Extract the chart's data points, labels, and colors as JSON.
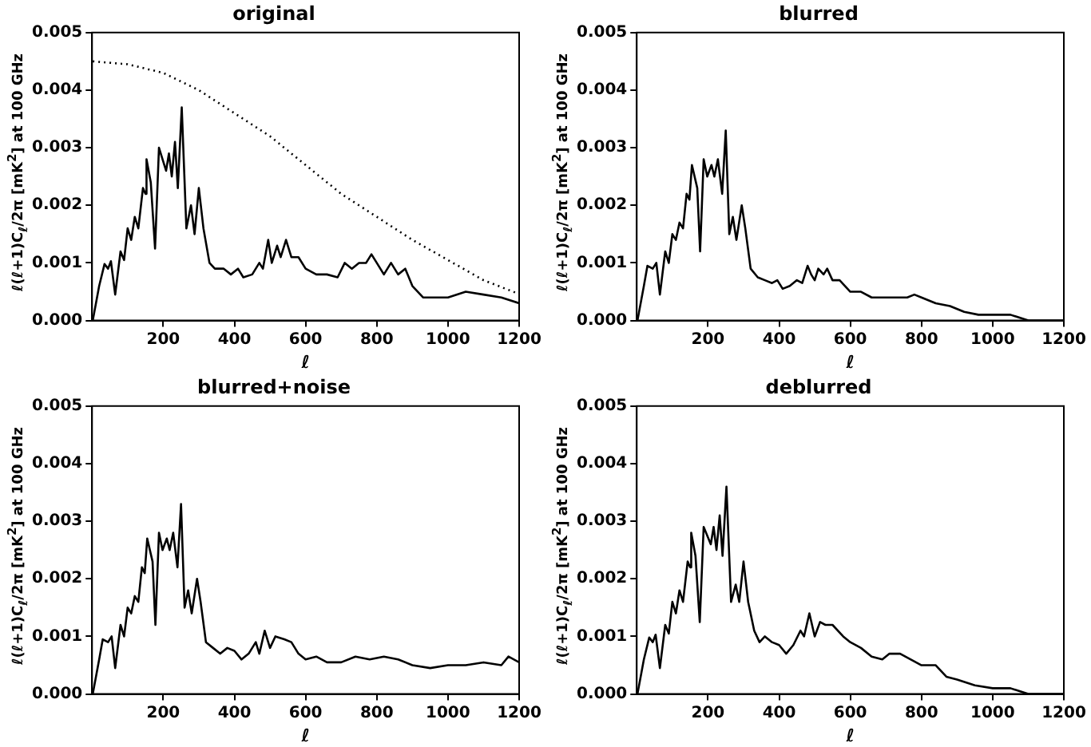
{
  "chart_data": [
    {
      "type": "line",
      "title": "original",
      "xlabel": "ℓ",
      "ylabel": "ℓ(ℓ+1)C$_{ℓ}$/2π   [mK$^{2}$] at 100 GHz",
      "xlim": [
        0,
        1200
      ],
      "xticks": [
        200,
        400,
        600,
        800,
        1000,
        1200
      ],
      "ylim": [
        0,
        0.005
      ],
      "yticks": [
        {
          "value": 0,
          "label": "0.000"
        },
        {
          "value": 0.001,
          "label": "0.001"
        },
        {
          "value": 0.002,
          "label": "0.002"
        },
        {
          "value": 0.003,
          "label": "0.003"
        },
        {
          "value": 0.004,
          "label": "0.004"
        },
        {
          "value": 0.005,
          "label": "0.005"
        }
      ],
      "grid": false,
      "legend": false,
      "marker": "none",
      "series": [
        {
          "color": "#000000",
          "line_style": "solid",
          "x": [
            2,
            20,
            35,
            45,
            53,
            65,
            80,
            90,
            100,
            110,
            120,
            130,
            143,
            150,
            153,
            165,
            177,
            188,
            208,
            216,
            224,
            233,
            241,
            252,
            265,
            278,
            288,
            300,
            313,
            330,
            345,
            370,
            390,
            410,
            425,
            450,
            470,
            480,
            495,
            505,
            520,
            530,
            545,
            560,
            580,
            600,
            630,
            660,
            690,
            710,
            730,
            750,
            770,
            785,
            800,
            820,
            840,
            860,
            880,
            900,
            930,
            960,
            1000,
            1050,
            1100,
            1150,
            1200
          ],
          "values": [
            0,
            0.0006,
            0.00098,
            0.0009,
            0.00103,
            0.00045,
            0.0012,
            0.00105,
            0.0016,
            0.0014,
            0.0018,
            0.0016,
            0.0023,
            0.0022,
            0.0028,
            0.0024,
            0.00125,
            0.003,
            0.0026,
            0.0029,
            0.0025,
            0.0031,
            0.0023,
            0.0037,
            0.0016,
            0.002,
            0.0015,
            0.0023,
            0.0016,
            0.001,
            0.0009,
            0.0009,
            0.0008,
            0.0009,
            0.00075,
            0.0008,
            0.001,
            0.0009,
            0.0014,
            0.001,
            0.0013,
            0.0011,
            0.0014,
            0.0011,
            0.0011,
            0.0009,
            0.0008,
            0.0008,
            0.00075,
            0.001,
            0.0009,
            0.001,
            0.001,
            0.00115,
            0.001,
            0.0008,
            0.001,
            0.0008,
            0.0009,
            0.0006,
            0.0004,
            0.0004,
            0.0004,
            0.0005,
            0.00045,
            0.0004,
            0.0003
          ]
        },
        {
          "color": "#000000",
          "line_style": "dotted",
          "x": [
            2,
            100,
            200,
            300,
            400,
            500,
            600,
            700,
            800,
            900,
            1000,
            1100,
            1200
          ],
          "values": [
            0.0045,
            0.00445,
            0.0043,
            0.004,
            0.0036,
            0.0032,
            0.0027,
            0.0022,
            0.0018,
            0.0014,
            0.00105,
            0.0007,
            0.00046
          ]
        }
      ]
    },
    {
      "type": "line",
      "title": "blurred",
      "xlabel": "ℓ",
      "ylabel": "ℓ(ℓ+1)C$_{ℓ}$/2π   [mK$^{2}$] at 100 GHz",
      "xlim": [
        0,
        1200
      ],
      "xticks": [
        200,
        400,
        600,
        800,
        1000,
        1200
      ],
      "ylim": [
        0,
        0.005
      ],
      "yticks": [
        {
          "value": 0,
          "label": "0.000"
        },
        {
          "value": 0.001,
          "label": "0.001"
        },
        {
          "value": 0.002,
          "label": "0.002"
        },
        {
          "value": 0.003,
          "label": "0.003"
        },
        {
          "value": 0.004,
          "label": "0.004"
        },
        {
          "value": 0.005,
          "label": "0.005"
        }
      ],
      "grid": false,
      "legend": false,
      "marker": "none",
      "series": [
        {
          "color": "#000000",
          "line_style": "solid",
          "x": [
            2,
            20,
            30,
            45,
            55,
            65,
            80,
            90,
            100,
            110,
            120,
            130,
            140,
            148,
            155,
            170,
            178,
            188,
            198,
            210,
            218,
            228,
            240,
            250,
            260,
            270,
            280,
            295,
            305,
            320,
            340,
            360,
            380,
            395,
            410,
            430,
            450,
            465,
            480,
            490,
            500,
            510,
            525,
            535,
            550,
            570,
            600,
            630,
            660,
            690,
            720,
            740,
            760,
            780,
            800,
            840,
            880,
            920,
            960,
            1000,
            1050,
            1100,
            1150,
            1200
          ],
          "values": [
            0,
            0.0006,
            0.00095,
            0.0009,
            0.001,
            0.00045,
            0.0012,
            0.001,
            0.0015,
            0.0014,
            0.0017,
            0.0016,
            0.0022,
            0.0021,
            0.0027,
            0.0023,
            0.0012,
            0.0028,
            0.0025,
            0.0027,
            0.0025,
            0.0028,
            0.0022,
            0.0033,
            0.0015,
            0.0018,
            0.0014,
            0.002,
            0.0016,
            0.0009,
            0.00075,
            0.0007,
            0.00065,
            0.0007,
            0.00055,
            0.0006,
            0.0007,
            0.00065,
            0.00095,
            0.0008,
            0.0007,
            0.0009,
            0.0008,
            0.0009,
            0.0007,
            0.0007,
            0.0005,
            0.0005,
            0.0004,
            0.0004,
            0.0004,
            0.0004,
            0.0004,
            0.00045,
            0.0004,
            0.0003,
            0.00025,
            0.00015,
            0.0001,
            0.0001,
            0.0001,
            0,
            0,
            0
          ]
        }
      ]
    },
    {
      "type": "line",
      "title": "blurred+noise",
      "xlabel": "ℓ",
      "ylabel": "ℓ(ℓ+1)C$_{ℓ}$/2π   [mK$^{2}$] at 100 GHz",
      "xlim": [
        0,
        1200
      ],
      "xticks": [
        200,
        400,
        600,
        800,
        1000,
        1200
      ],
      "ylim": [
        0,
        0.005
      ],
      "yticks": [
        {
          "value": 0,
          "label": "0.000"
        },
        {
          "value": 0.001,
          "label": "0.001"
        },
        {
          "value": 0.002,
          "label": "0.002"
        },
        {
          "value": 0.003,
          "label": "0.003"
        },
        {
          "value": 0.004,
          "label": "0.004"
        },
        {
          "value": 0.005,
          "label": "0.005"
        }
      ],
      "grid": false,
      "legend": false,
      "marker": "none",
      "series": [
        {
          "color": "#000000",
          "line_style": "solid",
          "x": [
            2,
            20,
            30,
            45,
            55,
            65,
            80,
            90,
            100,
            110,
            120,
            130,
            140,
            148,
            155,
            170,
            178,
            188,
            198,
            210,
            218,
            228,
            240,
            250,
            260,
            270,
            280,
            295,
            305,
            320,
            340,
            360,
            380,
            400,
            420,
            440,
            460,
            470,
            485,
            500,
            515,
            540,
            560,
            580,
            600,
            630,
            660,
            700,
            740,
            780,
            820,
            860,
            900,
            950,
            1000,
            1050,
            1100,
            1150,
            1170,
            1200
          ],
          "values": [
            0,
            0.0006,
            0.00095,
            0.0009,
            0.001,
            0.00045,
            0.0012,
            0.001,
            0.0015,
            0.0014,
            0.0017,
            0.0016,
            0.0022,
            0.0021,
            0.0027,
            0.0023,
            0.0012,
            0.0028,
            0.0025,
            0.0027,
            0.0025,
            0.0028,
            0.0022,
            0.0033,
            0.0015,
            0.0018,
            0.0014,
            0.002,
            0.0016,
            0.0009,
            0.0008,
            0.0007,
            0.0008,
            0.00075,
            0.0006,
            0.0007,
            0.0009,
            0.0007,
            0.0011,
            0.0008,
            0.001,
            0.00095,
            0.0009,
            0.0007,
            0.0006,
            0.00065,
            0.00055,
            0.00055,
            0.00065,
            0.0006,
            0.00065,
            0.0006,
            0.0005,
            0.00045,
            0.0005,
            0.0005,
            0.00055,
            0.0005,
            0.00065,
            0.00055
          ]
        }
      ]
    },
    {
      "type": "line",
      "title": "deblurred",
      "xlabel": "ℓ",
      "ylabel": "ℓ(ℓ+1)C$_{ℓ}$/2π   [mK$^{2}$] at 100 GHz",
      "xlim": [
        0,
        1200
      ],
      "xticks": [
        200,
        400,
        600,
        800,
        1000,
        1200
      ],
      "ylim": [
        0,
        0.005
      ],
      "yticks": [
        {
          "value": 0,
          "label": "0.000"
        },
        {
          "value": 0.001,
          "label": "0.001"
        },
        {
          "value": 0.002,
          "label": "0.002"
        },
        {
          "value": 0.003,
          "label": "0.003"
        },
        {
          "value": 0.004,
          "label": "0.004"
        },
        {
          "value": 0.005,
          "label": "0.005"
        }
      ],
      "grid": false,
      "legend": false,
      "marker": "none",
      "series": [
        {
          "color": "#000000",
          "line_style": "solid",
          "x": [
            2,
            20,
            35,
            45,
            53,
            65,
            80,
            90,
            100,
            110,
            120,
            130,
            143,
            150,
            153,
            165,
            177,
            188,
            208,
            216,
            224,
            233,
            241,
            252,
            265,
            278,
            288,
            300,
            313,
            330,
            345,
            360,
            380,
            400,
            420,
            440,
            460,
            470,
            485,
            500,
            515,
            530,
            550,
            580,
            600,
            630,
            660,
            690,
            710,
            740,
            770,
            800,
            840,
            870,
            900,
            950,
            1000,
            1050,
            1100,
            1150,
            1200
          ],
          "values": [
            0,
            0.0006,
            0.00098,
            0.0009,
            0.00103,
            0.00045,
            0.0012,
            0.00105,
            0.0016,
            0.0014,
            0.0018,
            0.0016,
            0.0023,
            0.0022,
            0.0028,
            0.0024,
            0.00125,
            0.0029,
            0.0026,
            0.0029,
            0.0025,
            0.0031,
            0.0024,
            0.0036,
            0.0016,
            0.0019,
            0.0016,
            0.0023,
            0.0016,
            0.0011,
            0.0009,
            0.001,
            0.0009,
            0.00085,
            0.0007,
            0.00085,
            0.0011,
            0.001,
            0.0014,
            0.001,
            0.00125,
            0.0012,
            0.0012,
            0.001,
            0.0009,
            0.0008,
            0.00065,
            0.0006,
            0.0007,
            0.0007,
            0.0006,
            0.0005,
            0.0005,
            0.0003,
            0.00025,
            0.00015,
            0.0001,
            0.0001,
            0,
            0,
            0
          ]
        }
      ]
    }
  ]
}
